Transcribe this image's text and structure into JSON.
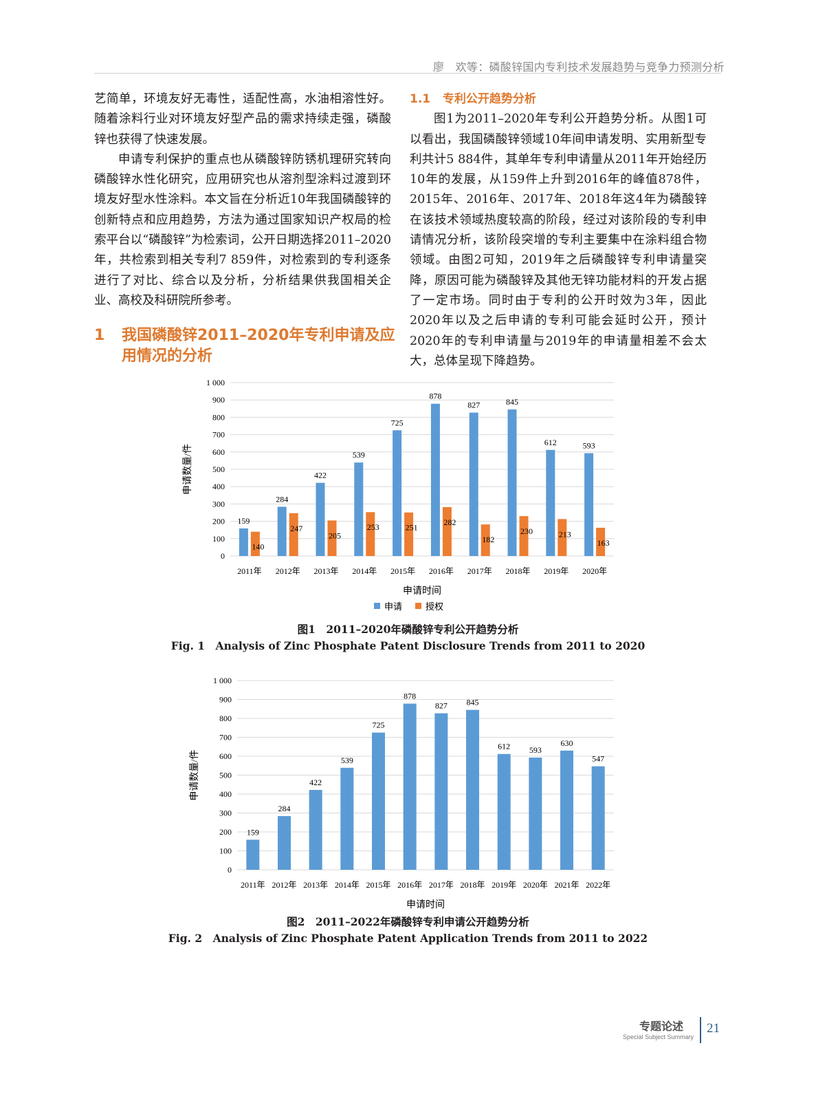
{
  "header": {
    "running_title": "廖　欢等：磷酸锌国内专利技术发展趋势与竞争力预测分析"
  },
  "left_column": {
    "para1": "艺简单，环境友好无毒性，适配性高，水油相溶性好。随着涂料行业对环境友好型产品的需求持续走强，磷酸锌也获得了快速发展。",
    "para2": "申请专利保护的重点也从磷酸锌防锈机理研究转向磷酸锌水性化研究，应用研究也从溶剂型涂料过渡到环境友好型水性涂料。本文旨在分析近10年我国磷酸锌的创新特点和应用趋势，方法为通过国家知识产权局的检索平台以“磷酸锌”为检索词，公开日期选择2011–2020年，共检索到相关专利7 859件，对检索到的专利逐条进行了对比、综合以及分析，分析结果供我国相关企业、高校及科研院所参考。",
    "section_number": "1",
    "section_title": "我国磷酸锌2011–2020年专利申请及应用情况的分析"
  },
  "right_column": {
    "subsection_number": "1.1",
    "subsection_title": "专利公开趋势分析",
    "para": "图1为2011–2020年专利公开趋势分析。从图1可以看出，我国磷酸锌领域10年间申请发明、实用新型专利共计5 884件，其单年专利申请量从2011年开始经历10年的发展，从159件上升到2016年的峰值878件，2015年、2016年、2017年、2018年这4年为磷酸锌在该技术领域热度较高的阶段，经过对该阶段的专利申请情况分析，该阶段突增的专利主要集中在涂料组合物领域。由图2可知，2019年之后磷酸锌专利申请量突降，原因可能为磷酸锌及其他无锌功能材料的开发占据了一定市场。同时由于专利的公开时效为3年，因此2020年以及之后申请的专利可能会延时公开，预计2020年的专利申请量与2019年的申请量相差不会太大，总体呈现下降趋势。"
  },
  "figure1": {
    "caption_cn": "图1　2011–2020年磷酸锌专利公开趋势分析",
    "caption_en": "Fig. 1　Analysis of Zinc Phosphate Patent Disclosure Trends from 2011 to 2020"
  },
  "figure2": {
    "caption_cn": "图2　2011–2022年磷酸锌专利申请公开趋势分析",
    "caption_en": "Fig. 2　Analysis of Zinc Phosphate Patent Application Trends from 2011 to 2022"
  },
  "chart_data": [
    {
      "type": "bar",
      "categories": [
        "2011年",
        "2012年",
        "2013年",
        "2014年",
        "2015年",
        "2016年",
        "2017年",
        "2018年",
        "2019年",
        "2020年"
      ],
      "series": [
        {
          "name": "申请",
          "color": "#5b9bd5",
          "values": [
            159,
            284,
            422,
            539,
            725,
            878,
            827,
            845,
            612,
            593
          ]
        },
        {
          "name": "授权",
          "color": "#ed7d31",
          "values": [
            140,
            247,
            205,
            253,
            251,
            282,
            182,
            230,
            213,
            163
          ]
        }
      ],
      "xlabel": "申请时间",
      "ylabel": "申请数量/件",
      "ylim": [
        0,
        1000
      ],
      "yticks": [
        "0",
        "100",
        "200",
        "300",
        "400",
        "500",
        "600",
        "700",
        "800",
        "900",
        "1 000"
      ],
      "grid": true,
      "legend": "bottom"
    },
    {
      "type": "bar",
      "categories": [
        "2011年",
        "2012年",
        "2013年",
        "2014年",
        "2015年",
        "2016年",
        "2017年",
        "2018年",
        "2019年",
        "2020年",
        "2021年",
        "2022年"
      ],
      "series": [
        {
          "color": "#5b9bd5",
          "values": [
            159,
            284,
            422,
            539,
            725,
            878,
            827,
            845,
            612,
            593,
            630,
            547
          ]
        }
      ],
      "xlabel": "申请时间",
      "ylabel": "申请数量/件",
      "ylim": [
        0,
        1000
      ],
      "yticks": [
        "0",
        "100",
        "200",
        "300",
        "400",
        "500",
        "600",
        "700",
        "800",
        "900",
        "1 000"
      ],
      "grid": true
    }
  ],
  "footer": {
    "section_cn": "专题论述",
    "section_en": "Special Subject Summary",
    "page_number": "21"
  }
}
